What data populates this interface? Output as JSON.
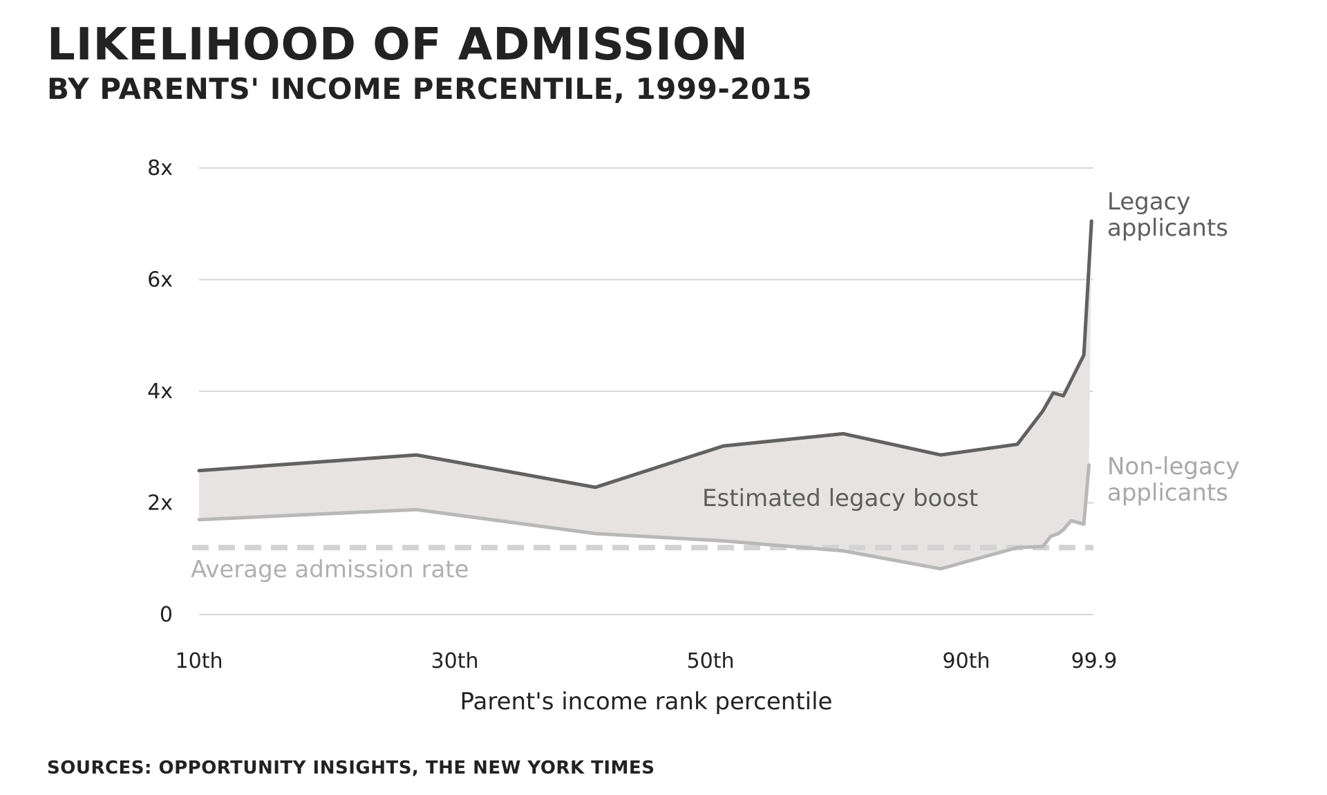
{
  "title": "LIKELIHOOD OF ADMISSION",
  "subtitle": "BY PARENTS' INCOME PERCENTILE, 1999-2015",
  "source": "SOURCES: OPPORTUNITY INSIGHTS, THE NEW YORK TIMES",
  "colors": {
    "legacy": "#616161",
    "non_legacy": "#b8b8b8",
    "fill": "#e6e3e2",
    "average": "#d3d3d3",
    "grid": "#d6d6d6",
    "text": "#222222"
  },
  "chart_data": {
    "type": "line",
    "xlabel": "Parent's income rank percentile",
    "ylabel": "",
    "x_tick_labels": [
      "10th",
      "30th",
      "50th",
      "90th",
      "99.9"
    ],
    "x_tick_positions": [
      0,
      1,
      2,
      3,
      3.5
    ],
    "ylim": [
      0,
      8
    ],
    "y_ticks": [
      0,
      2,
      4,
      6,
      8
    ],
    "y_tick_labels": [
      "0",
      "2x",
      "4x",
      "6x",
      "8x"
    ],
    "grid": true,
    "series": [
      {
        "name": "Legacy applicants",
        "points": [
          [
            0,
            2.58
          ],
          [
            0.85,
            2.86
          ],
          [
            1.55,
            2.28
          ],
          [
            2.05,
            3.02
          ],
          [
            2.52,
            3.24
          ],
          [
            2.9,
            2.86
          ],
          [
            3.2,
            3.05
          ],
          [
            3.3,
            3.65
          ],
          [
            3.34,
            3.97
          ],
          [
            3.38,
            3.92
          ],
          [
            3.46,
            4.65
          ],
          [
            3.49,
            7.05
          ]
        ]
      },
      {
        "name": "Non-legacy applicants",
        "points": [
          [
            0,
            1.7
          ],
          [
            0.85,
            1.88
          ],
          [
            1.55,
            1.45
          ],
          [
            2.05,
            1.32
          ],
          [
            2.52,
            1.14
          ],
          [
            2.9,
            0.82
          ],
          [
            3.2,
            1.2
          ],
          [
            3.3,
            1.22
          ],
          [
            3.33,
            1.4
          ],
          [
            3.36,
            1.45
          ],
          [
            3.38,
            1.52
          ],
          [
            3.41,
            1.68
          ],
          [
            3.46,
            1.62
          ],
          [
            3.48,
            2.68
          ]
        ]
      }
    ],
    "average_admission_rate": 1.2,
    "annotations": {
      "fill_label": "Estimated legacy boost",
      "average_label": "Average admission rate",
      "legacy_label": [
        "Legacy",
        "applicants"
      ],
      "non_legacy_label": [
        "Non-legacy",
        "applicants"
      ]
    }
  }
}
